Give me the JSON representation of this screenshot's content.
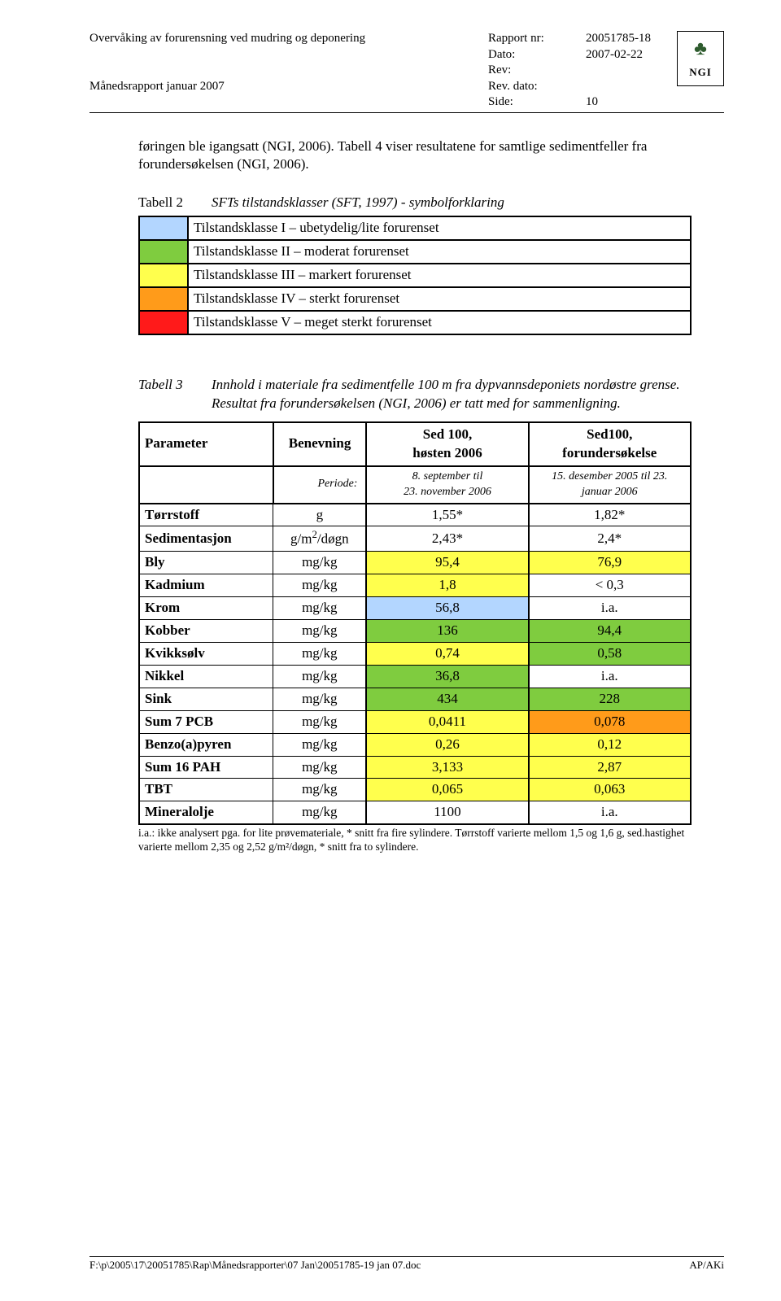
{
  "header": {
    "title_left": "Overvåking av forurensning ved mudring og deponering",
    "subtitle_left": "Månedsrapport januar 2007",
    "rapport_nr_label": "Rapport nr:",
    "rapport_nr": "20051785-18",
    "dato_label": "Dato:",
    "dato": "2007-02-22",
    "rev_label": "Rev:",
    "rev": "",
    "rev_dato_label": "Rev. dato:",
    "rev_dato": "",
    "side_label": "Side:",
    "side": "10",
    "logo_text": "NGI"
  },
  "intro": "føringen ble igangsatt (NGI, 2006). Tabell 4 viser resultatene for samtlige sedimentfeller fra forundersøkelsen (NGI, 2006).",
  "table2": {
    "label": "Tabell 2",
    "caption": "SFTs tilstandsklasser (SFT, 1997) - symbolforklaring",
    "rows": [
      {
        "color": "#b3d6ff",
        "text": "Tilstandsklasse I – ubetydelig/lite forurenset"
      },
      {
        "color": "#7fcc3f",
        "text": "Tilstandsklasse II – moderat forurenset"
      },
      {
        "color": "#ffff4d",
        "text": "Tilstandsklasse III – markert forurenset"
      },
      {
        "color": "#ff9b1a",
        "text": "Tilstandsklasse IV – sterkt forurenset"
      },
      {
        "color": "#ff1a1a",
        "text": "Tilstandsklasse V – meget sterkt forurenset"
      }
    ]
  },
  "table3": {
    "label": "Tabell 3",
    "caption": "Innhold i materiale fra sedimentfelle 100 m fra dypvannsdeponiets nordøstre grense. Resultat fra forundersøkelsen (NGI, 2006) er tatt med for sammenligning.",
    "head": {
      "parameter": "Parameter",
      "benevning": "Benevning",
      "sed100_h": "Sed 100,\nhøsten 2006",
      "sed100_f": "Sed100,\nforundersøkelse",
      "periode_label": "Periode:",
      "periode_h": "8. september til\n23. november 2006",
      "periode_f": "15. desember 2005 til 23.\njanuar 2006"
    },
    "rows": [
      {
        "p": "Tørrstoff",
        "u": "g",
        "v1": "1,55*",
        "c1": "",
        "v2": "1,82*",
        "c2": ""
      },
      {
        "p": "Sedimentasjon",
        "u": "g/m²/døgn",
        "v1": "2,43*",
        "c1": "",
        "v2": "2,4*",
        "c2": ""
      },
      {
        "p": "Bly",
        "u": "mg/kg",
        "v1": "95,4",
        "c1": "#ffff4d",
        "v2": "76,9",
        "c2": "#ffff4d"
      },
      {
        "p": "Kadmium",
        "u": "mg/kg",
        "v1": "1,8",
        "c1": "#ffff4d",
        "v2": "< 0,3",
        "c2": ""
      },
      {
        "p": "Krom",
        "u": "mg/kg",
        "v1": "56,8",
        "c1": "#b3d6ff",
        "v2": "i.a.",
        "c2": ""
      },
      {
        "p": "Kobber",
        "u": "mg/kg",
        "v1": "136",
        "c1": "#7fcc3f",
        "v2": "94,4",
        "c2": "#7fcc3f"
      },
      {
        "p": "Kvikksølv",
        "u": "mg/kg",
        "v1": "0,74",
        "c1": "#ffff4d",
        "v2": "0,58",
        "c2": "#7fcc3f"
      },
      {
        "p": "Nikkel",
        "u": "mg/kg",
        "v1": "36,8",
        "c1": "#7fcc3f",
        "v2": "i.a.",
        "c2": ""
      },
      {
        "p": "Sink",
        "u": "mg/kg",
        "v1": "434",
        "c1": "#7fcc3f",
        "v2": "228",
        "c2": "#7fcc3f"
      },
      {
        "p": "Sum 7 PCB",
        "u": "mg/kg",
        "v1": "0,0411",
        "c1": "#ffff4d",
        "v2": "0,078",
        "c2": "#ff9b1a"
      },
      {
        "p": "Benzo(a)pyren",
        "u": "mg/kg",
        "v1": "0,26",
        "c1": "#ffff4d",
        "v2": "0,12",
        "c2": "#ffff4d"
      },
      {
        "p": "Sum 16 PAH",
        "u": "mg/kg",
        "v1": "3,133",
        "c1": "#ffff4d",
        "v2": "2,87",
        "c2": "#ffff4d"
      },
      {
        "p": "TBT",
        "u": "mg/kg",
        "v1": "0,065",
        "c1": "#ffff4d",
        "v2": "0,063",
        "c2": "#ffff4d"
      },
      {
        "p": "Mineralolje",
        "u": "mg/kg",
        "v1": "1100",
        "c1": "",
        "v2": "i.a.",
        "c2": ""
      }
    ],
    "footnote": "i.a.: ikke analysert pga. for lite prøvemateriale, * snitt fra fire sylindere. Tørrstoff varierte mellom 1,5 og 1,6 g, sed.hastighet varierte mellom 2,35 og 2,52 g/m²/døgn, * snitt fra to sylindere."
  },
  "footer": {
    "path": "F:\\p\\2005\\17\\20051785\\Rap\\Månedsrapporter\\07 Jan\\20051785-19 jan 07.doc",
    "right": "AP/AKi"
  }
}
